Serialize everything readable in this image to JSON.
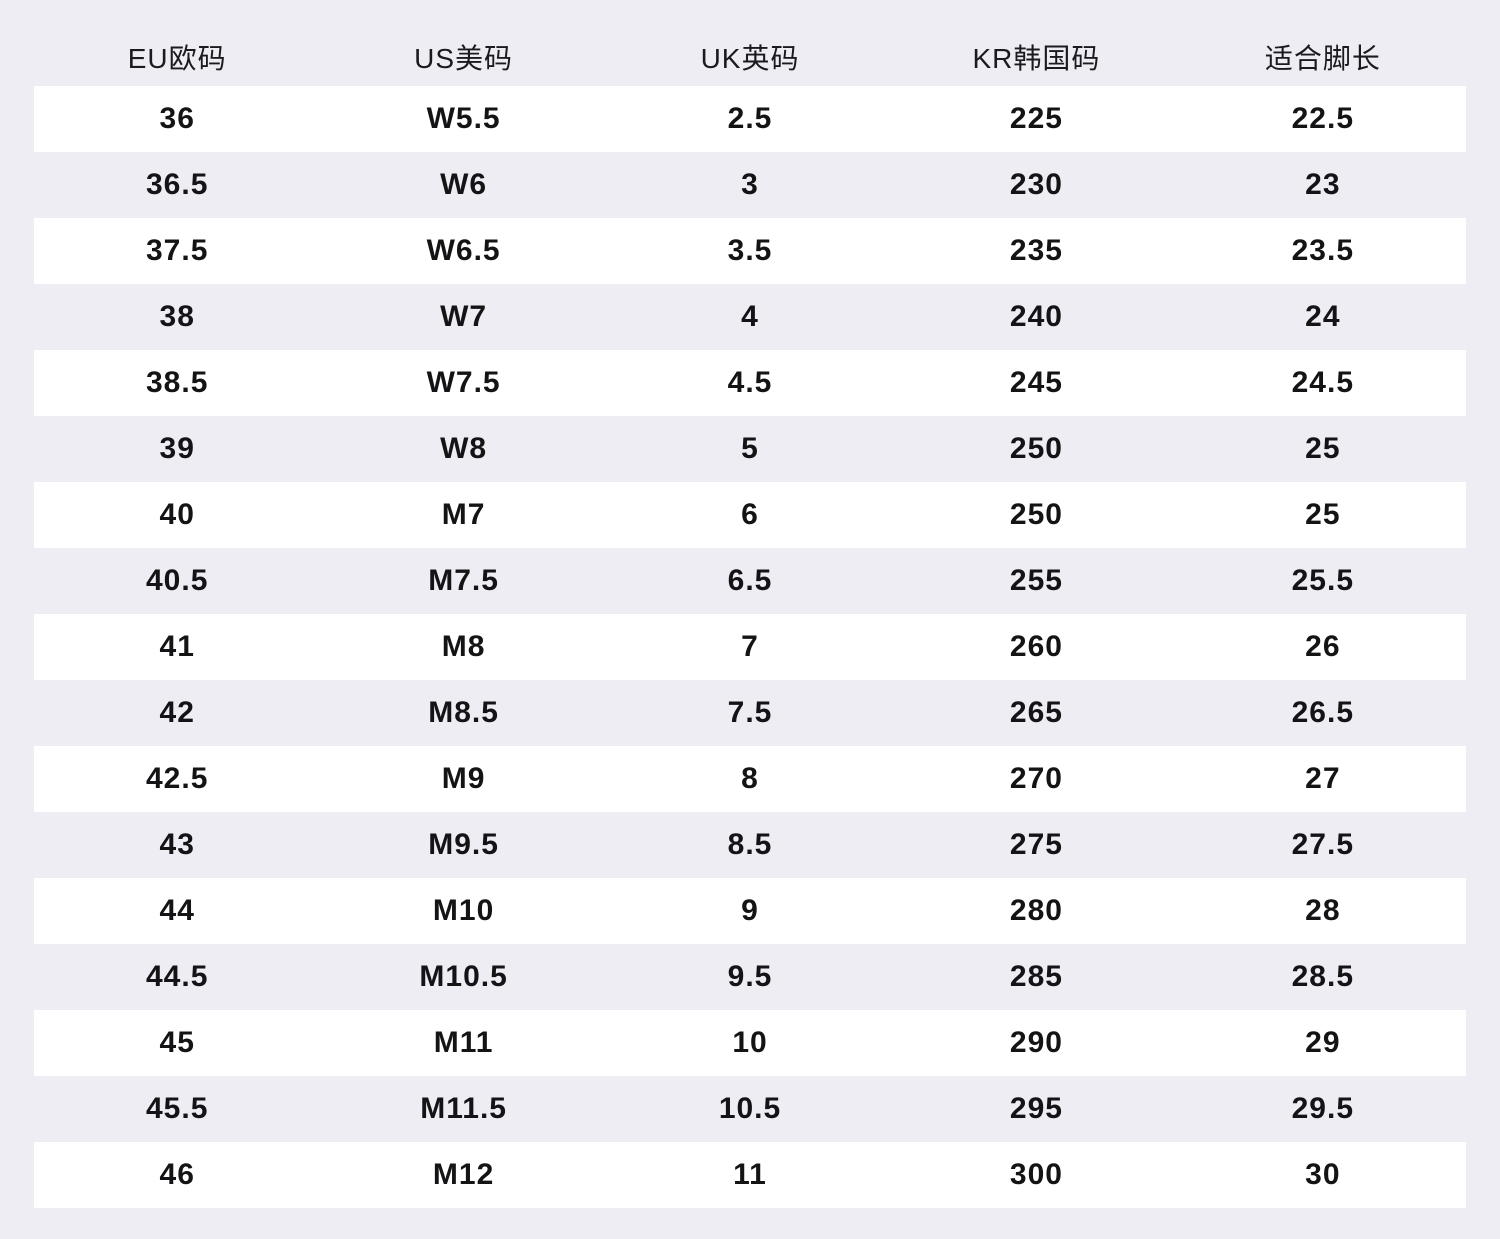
{
  "table": {
    "headers": [
      "EU欧码",
      "US美码",
      "UK英码",
      "KR韩国码",
      "适合脚长"
    ],
    "rows": [
      [
        "36",
        "W5.5",
        "2.5",
        "225",
        "22.5"
      ],
      [
        "36.5",
        "W6",
        "3",
        "230",
        "23"
      ],
      [
        "37.5",
        "W6.5",
        "3.5",
        "235",
        "23.5"
      ],
      [
        "38",
        "W7",
        "4",
        "240",
        "24"
      ],
      [
        "38.5",
        "W7.5",
        "4.5",
        "245",
        "24.5"
      ],
      [
        "39",
        "W8",
        "5",
        "250",
        "25"
      ],
      [
        "40",
        "M7",
        "6",
        "250",
        "25"
      ],
      [
        "40.5",
        "M7.5",
        "6.5",
        "255",
        "25.5"
      ],
      [
        "41",
        "M8",
        "7",
        "260",
        "26"
      ],
      [
        "42",
        "M8.5",
        "7.5",
        "265",
        "26.5"
      ],
      [
        "42.5",
        "M9",
        "8",
        "270",
        "27"
      ],
      [
        "43",
        "M9.5",
        "8.5",
        "275",
        "27.5"
      ],
      [
        "44",
        "M10",
        "9",
        "280",
        "28"
      ],
      [
        "44.5",
        "M10.5",
        "9.5",
        "285",
        "28.5"
      ],
      [
        "45",
        "M11",
        "10",
        "290",
        "29"
      ],
      [
        "45.5",
        "M11.5",
        "10.5",
        "295",
        "29.5"
      ],
      [
        "46",
        "M12",
        "11",
        "300",
        "30"
      ]
    ]
  },
  "chart_data": {
    "type": "table",
    "title": "",
    "columns": [
      "EU欧码",
      "US美码",
      "UK英码",
      "KR韩国码",
      "适合脚长"
    ],
    "rows": [
      [
        "36",
        "W5.5",
        "2.5",
        "225",
        "22.5"
      ],
      [
        "36.5",
        "W6",
        "3",
        "230",
        "23"
      ],
      [
        "37.5",
        "W6.5",
        "3.5",
        "235",
        "23.5"
      ],
      [
        "38",
        "W7",
        "4",
        "240",
        "24"
      ],
      [
        "38.5",
        "W7.5",
        "4.5",
        "245",
        "24.5"
      ],
      [
        "39",
        "W8",
        "5",
        "250",
        "25"
      ],
      [
        "40",
        "M7",
        "6",
        "250",
        "25"
      ],
      [
        "40.5",
        "M7.5",
        "6.5",
        "255",
        "25.5"
      ],
      [
        "41",
        "M8",
        "7",
        "260",
        "26"
      ],
      [
        "42",
        "M8.5",
        "7.5",
        "265",
        "26.5"
      ],
      [
        "42.5",
        "M9",
        "8",
        "270",
        "27"
      ],
      [
        "43",
        "M9.5",
        "8.5",
        "275",
        "27.5"
      ],
      [
        "44",
        "M10",
        "9",
        "280",
        "28"
      ],
      [
        "44.5",
        "M10.5",
        "9.5",
        "285",
        "28.5"
      ],
      [
        "45",
        "M11",
        "10",
        "290",
        "29"
      ],
      [
        "45.5",
        "M11.5",
        "10.5",
        "295",
        "29.5"
      ],
      [
        "46",
        "M12",
        "11",
        "300",
        "30"
      ]
    ]
  },
  "colors": {
    "page_background": "#ededf3",
    "row_stripe": "#ffffff",
    "text": "#141417"
  }
}
